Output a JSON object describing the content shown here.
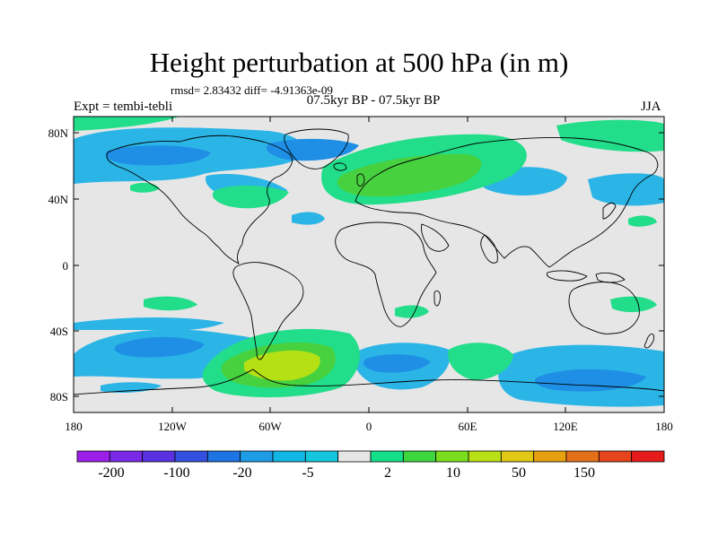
{
  "header": {
    "title": "Height perturbation at 500 hPa (in m)",
    "stats": "rmsd= 2.83432 diff= -4.91363e-09",
    "subtitle": "07.5kyr BP - 07.5kyr BP",
    "left_label": "Expt = tembi-tebli",
    "right_label": "JJA"
  },
  "map": {
    "lat_ticks": [
      "80N",
      "40N",
      "0",
      "40S",
      "80S"
    ],
    "lon_ticks": [
      "180",
      "120W",
      "60W",
      "0",
      "60E",
      "120E",
      "180"
    ],
    "background_color": "#e6e6e6"
  },
  "colorbar": {
    "colors": [
      "#9b1fe8",
      "#7a2ae6",
      "#5a32e2",
      "#3450e0",
      "#1f74e4",
      "#1f9ce6",
      "#12b6e4",
      "#14c7df",
      "#e6e6e6",
      "#14e08a",
      "#3ed63e",
      "#7ade1c",
      "#b8e014",
      "#e0c814",
      "#e6a00f",
      "#e6701a",
      "#e6441c",
      "#e61c1c"
    ],
    "labels": [
      "-200",
      "-100",
      "-20",
      "-5",
      "2",
      "10",
      "50",
      "150"
    ]
  }
}
